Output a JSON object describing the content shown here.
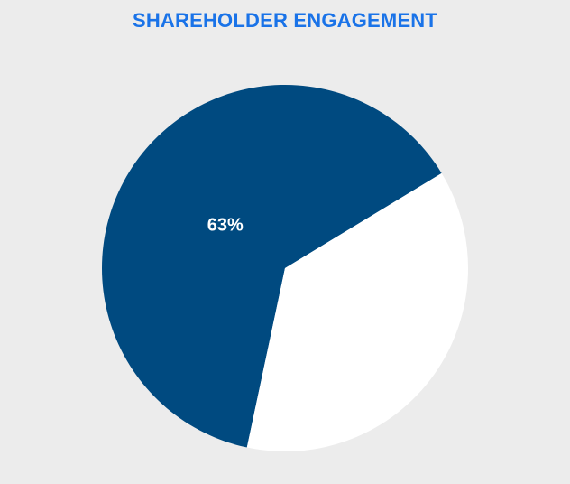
{
  "chart_data": {
    "type": "pie",
    "title": "SHAREHOLDER ENGAGEMENT",
    "slices": [
      {
        "value": 63,
        "label": "63%",
        "color": "#004a80"
      },
      {
        "value": 37,
        "label": "",
        "color": "#ffffff"
      }
    ]
  },
  "colors": {
    "title": "#1a73e8",
    "background": "#ececec",
    "label_text": "#ffffff"
  }
}
